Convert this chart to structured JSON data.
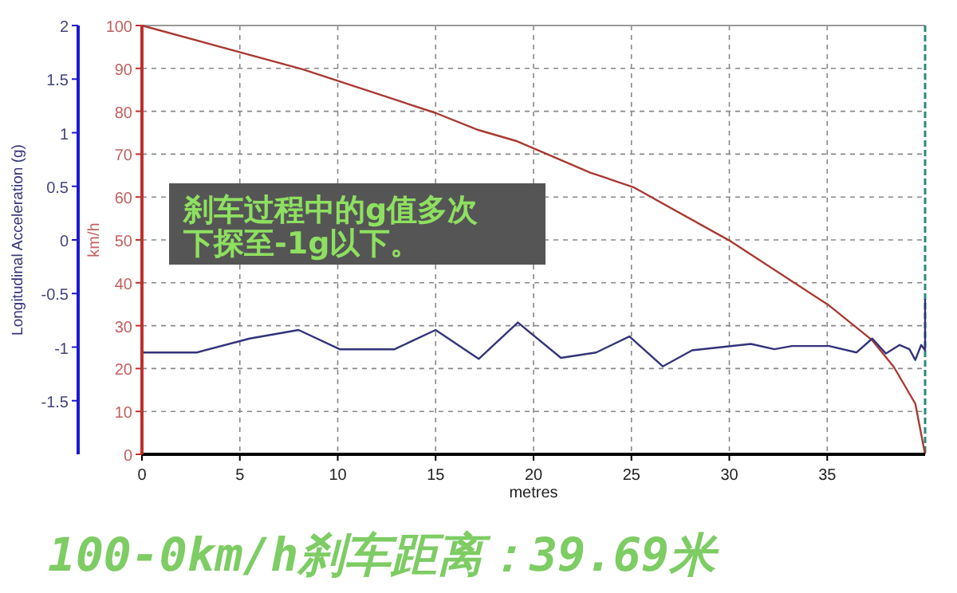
{
  "chart_data": {
    "type": "line",
    "title": "100-0km/h刹车距离：39.69米",
    "xlabel": "metres",
    "ylabel": "km/h",
    "y2label": "Longitudinal Acceleration (g)",
    "annotations": [
      "刹车过程中的g值多次下探至-1g以下。"
    ],
    "xlim": [
      0,
      40
    ],
    "xticks": [
      0,
      5,
      10,
      15,
      20,
      25,
      30,
      35
    ],
    "ylim": [
      0,
      100
    ],
    "yticks": [
      0,
      10,
      20,
      30,
      40,
      50,
      60,
      70,
      80,
      90,
      100
    ],
    "y2lim": [
      -2,
      2
    ],
    "y2ticks": [
      -1.5,
      -1,
      -0.5,
      0,
      0.5,
      1,
      1.5,
      2
    ],
    "grid": true,
    "marker": "none",
    "line_style": "solid",
    "series": [
      {
        "color": "#a83a32",
        "x": [
          0,
          8.2,
          15,
          17.2,
          19.1,
          22.9,
          25.1,
          30.1,
          35.1,
          37.3,
          38.4,
          39.5,
          40
        ],
        "values": [
          100,
          89.8,
          79.6,
          75.6,
          73.1,
          65.7,
          62.3,
          49.6,
          34.7,
          26.6,
          20.4,
          11.8,
          0
        ]
      },
      {
        "color": "#33337a",
        "axis": "y2",
        "x": [
          0,
          2.8,
          5.5,
          8,
          10.1,
          12.9,
          15,
          17.2,
          19.2,
          21.4,
          23.2,
          24.9,
          26.6,
          28.1,
          31.1,
          32.3,
          33.2,
          35.1,
          36.5,
          37.3,
          38,
          38.7,
          39.2,
          39.5,
          39.8,
          40,
          40
        ],
        "values": [
          -1.05,
          -1.05,
          -0.92,
          -0.84,
          -1.02,
          -1.02,
          -0.84,
          -1.11,
          -0.77,
          -1.1,
          -1.05,
          -0.9,
          -1.18,
          -1.03,
          -0.97,
          -1.02,
          -0.99,
          -0.99,
          -1.05,
          -0.92,
          -1.06,
          -0.98,
          -1.02,
          -1.12,
          -0.98,
          -1.03,
          -0.55
        ]
      }
    ]
  }
}
